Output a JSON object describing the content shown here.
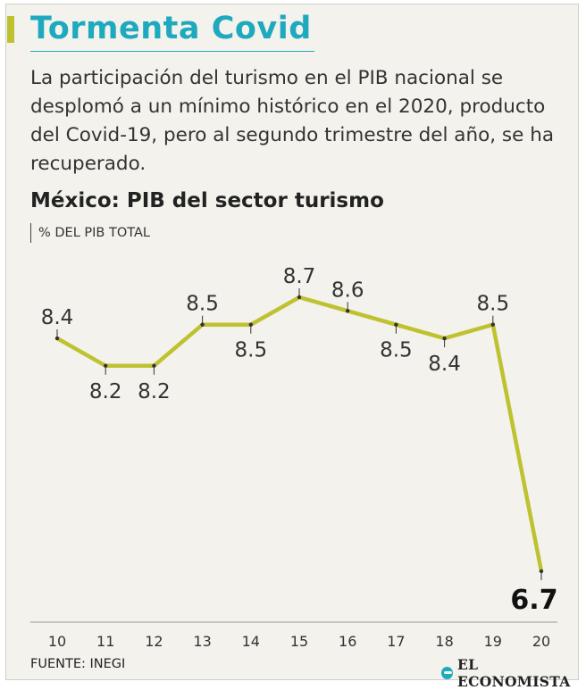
{
  "title": "Tormenta Covid",
  "description": "La participación del turismo en el PIB nacional se desplomó a un mínimo histórico en el 2020, producto del Covid-19, pero al segundo trimestre del año, se ha recuperado.",
  "source": "FUENTE: INEGI",
  "brand": "EL ECONOMISTA",
  "colors": {
    "title": "#1fa9bf",
    "line": "#bfc230",
    "text": "#333333"
  },
  "chart_data": {
    "type": "line",
    "title": "México: PIB del sector turismo",
    "subtitle": "% DEL PIB TOTAL",
    "categories": [
      "10",
      "11",
      "12",
      "13",
      "14",
      "15",
      "16",
      "17",
      "18",
      "19",
      "20"
    ],
    "values": [
      8.4,
      8.2,
      8.2,
      8.5,
      8.5,
      8.7,
      8.6,
      8.5,
      8.4,
      8.5,
      6.7
    ],
    "labels": [
      "8.4",
      "8.2",
      "8.2",
      "8.5",
      "8.5",
      "8.7",
      "8.6",
      "8.5",
      "8.4",
      "8.5",
      "6.7"
    ],
    "grid": false,
    "legend": "none"
  }
}
